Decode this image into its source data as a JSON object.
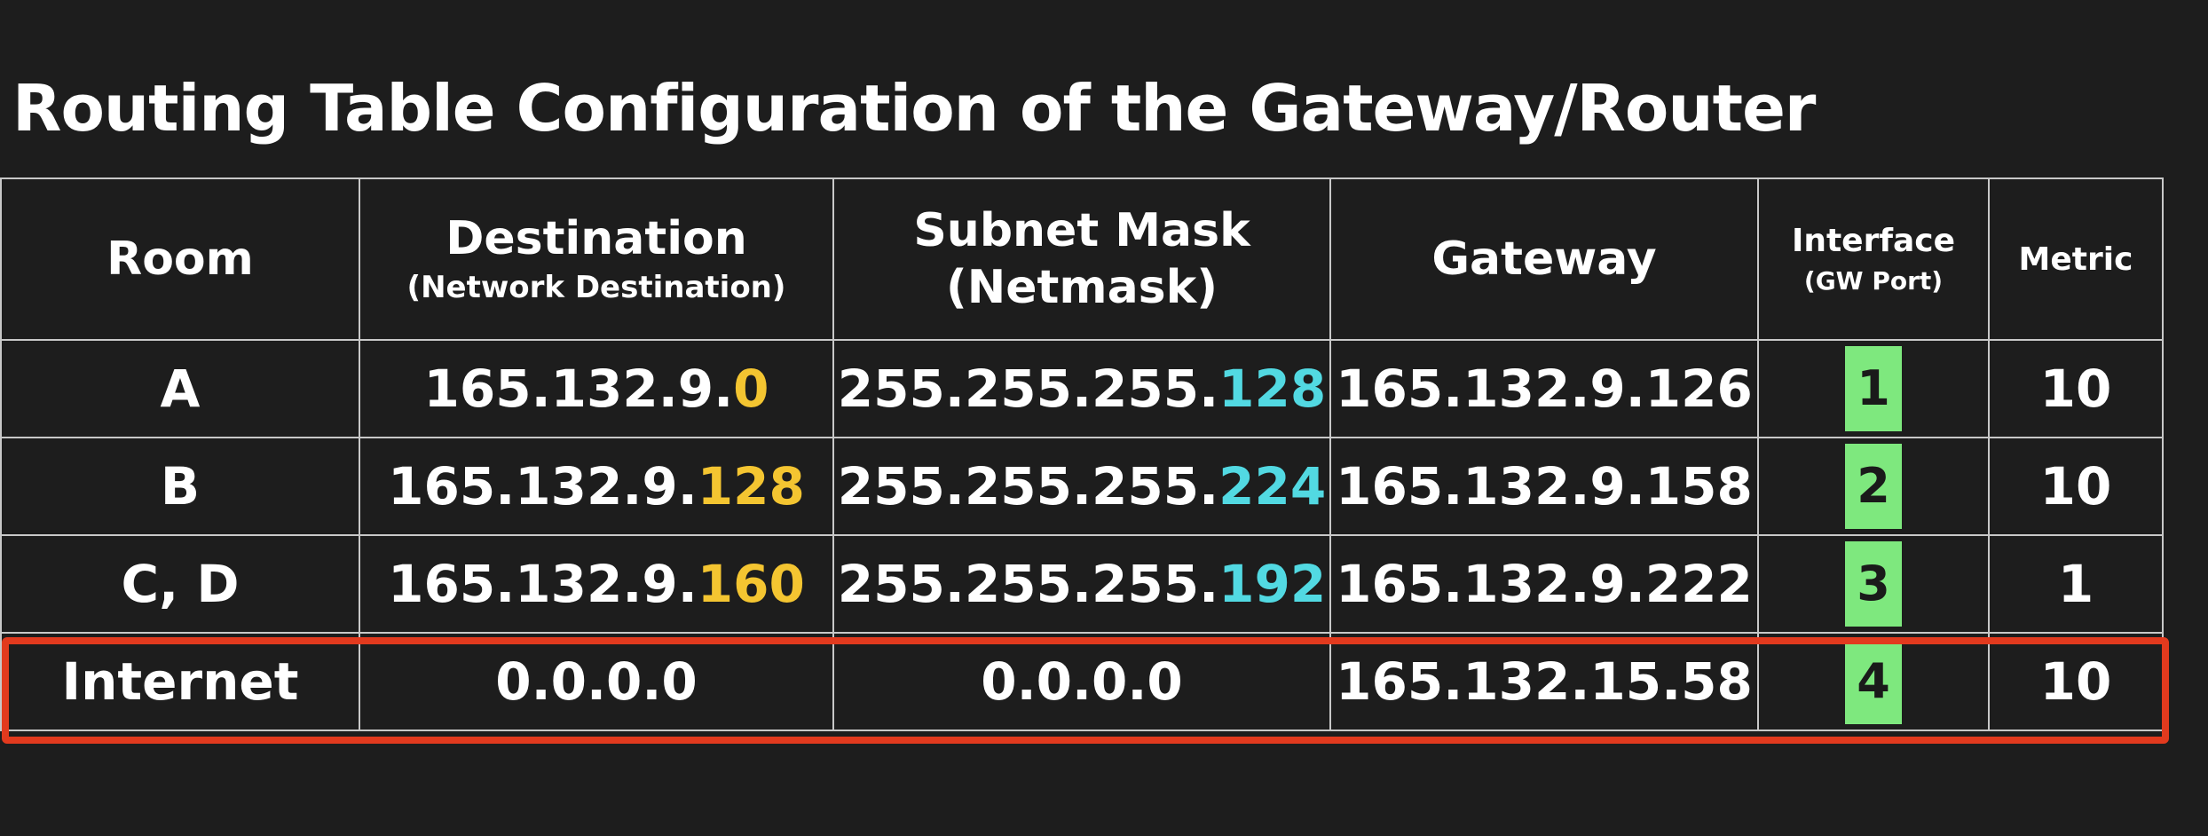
{
  "title": "Routing Table Configuration of the Gateway/Router",
  "colors": {
    "background": "#1d1d1d",
    "host_highlight": "#f4c531",
    "mask_highlight": "#52d9e2",
    "port_badge": "#7ee87e",
    "selection_border": "#e23a1e"
  },
  "headers": {
    "room": "Room",
    "destination": {
      "main": "Destination",
      "sub": "(Network Destination)"
    },
    "subnet_mask": {
      "main": "Subnet Mask",
      "sub": "(Netmask)"
    },
    "gateway": "Gateway",
    "interface": {
      "main": "Interface",
      "sub": "(GW Port)"
    },
    "metric": "Metric"
  },
  "rows": [
    {
      "room": "A",
      "destination_prefix": "165.132.9.",
      "destination_suffix": "0",
      "mask_prefix": "255.255.255.",
      "mask_suffix": "128",
      "gateway": "165.132.9.126",
      "interface": "1",
      "metric": "10"
    },
    {
      "room": "B",
      "destination_prefix": "165.132.9.",
      "destination_suffix": "128",
      "mask_prefix": "255.255.255.",
      "mask_suffix": "224",
      "gateway": "165.132.9.158",
      "interface": "2",
      "metric": "10"
    },
    {
      "room": "C, D",
      "destination_prefix": "165.132.9.",
      "destination_suffix": "160",
      "mask_prefix": "255.255.255.",
      "mask_suffix": "192",
      "gateway": "165.132.9.222",
      "interface": "3",
      "metric": "1"
    },
    {
      "room": "Internet",
      "destination_prefix": "0.0.0.0",
      "destination_suffix": "",
      "mask_prefix": "0.0.0.0",
      "mask_suffix": "",
      "gateway": "165.132.15.58",
      "interface": "4",
      "metric": "10"
    }
  ]
}
